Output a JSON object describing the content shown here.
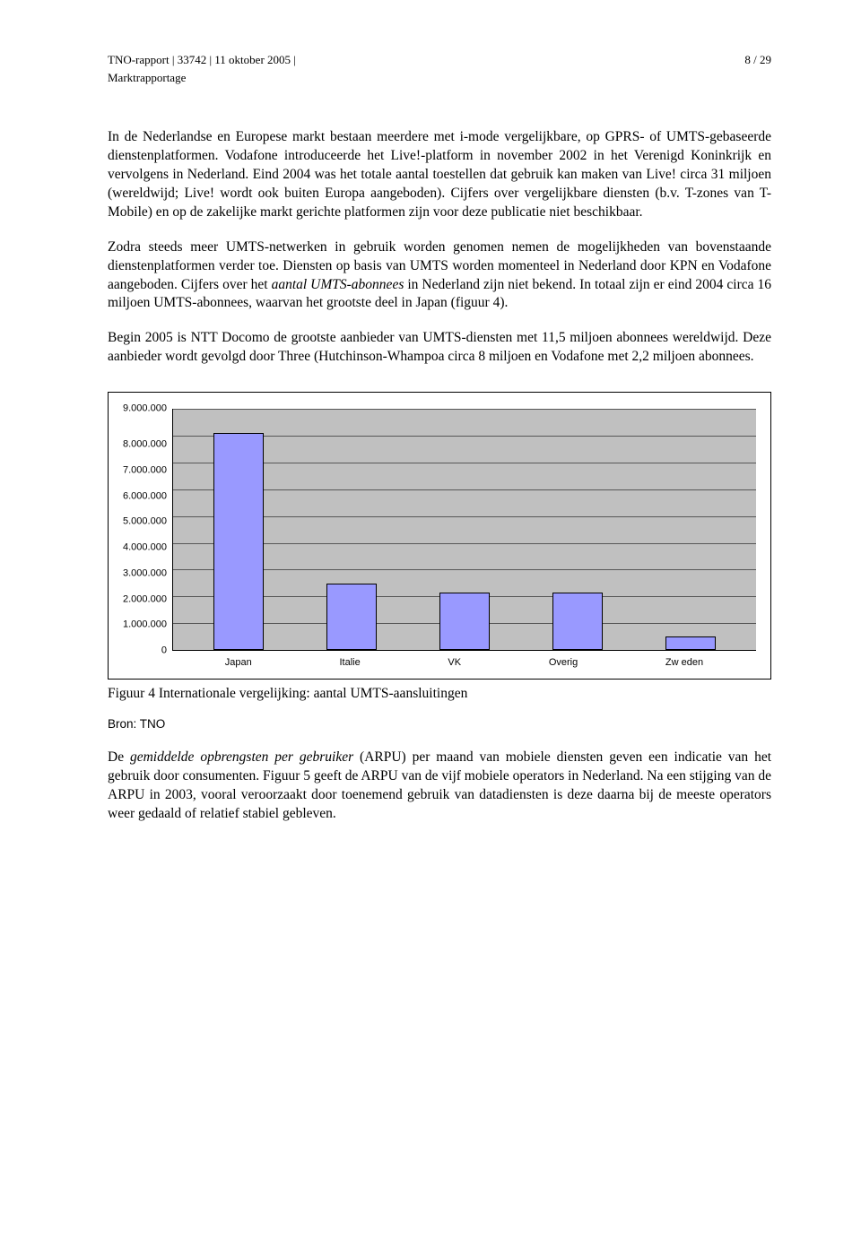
{
  "header": {
    "left": "TNO-rapport | 33742 | 11 oktober 2005 |",
    "right": "8 / 29",
    "sub": "Marktrapportage"
  },
  "paragraphs": {
    "p1_a": "In de Nederlandse en Europese markt bestaan meerdere met i-mode vergelijkbare, op GPRS- of UMTS-gebaseerde dienstenplatformen. Vodafone introduceerde het Live!-platform in november 2002 in het Verenigd Koninkrijk en vervolgens in Nederland. Eind 2004 was het totale aantal toestellen dat gebruik kan maken van Live! circa 31 miljoen  (wereldwijd; Live! wordt ook buiten Europa aangeboden). Cijfers over vergelijkbare diensten (b.v. T-zones van T-Mobile) en op de zakelijke markt gerichte platformen zijn voor deze publicatie niet beschikbaar.",
    "p2_a": "Zodra steeds meer UMTS-netwerken in gebruik worden genomen nemen de mogelijkheden van bovenstaande dienstenplatformen verder toe. Diensten op basis van UMTS worden momenteel in Nederland door KPN en Vodafone aangeboden. Cijfers over het ",
    "p2_em": "aantal UMTS-abonnees",
    "p2_b": " in Nederland zijn niet bekend. In totaal zijn er eind 2004 circa 16 miljoen UMTS-abonnees, waarvan het grootste deel in Japan (figuur 4).",
    "p3": "Begin 2005 is NTT Docomo de grootste aanbieder van UMTS-diensten met 11,5 miljoen abonnees wereldwijd. Deze aanbieder wordt gevolgd door Three (Hutchinson-Whampoa circa 8 miljoen en Vodafone met 2,2 miljoen abonnees.",
    "p4_a": "De ",
    "p4_em": "gemiddelde opbrengsten per gebruiker",
    "p4_b": " (ARPU) per maand van mobiele diensten geven een indicatie van het gebruik door consumenten. Figuur 5 geeft de ARPU van de vijf mobiele operators in Nederland. Na een stijging van de ARPU in 2003, vooral veroorzaakt door toenemend gebruik van datadiensten is deze daarna bij de meeste operators weer gedaald of relatief stabiel gebleven."
  },
  "chart": {
    "type": "bar",
    "categories": [
      "Japan",
      "Italie",
      "VK",
      "Overig",
      "Zw eden"
    ],
    "values": [
      8100000,
      2500000,
      2150000,
      2150000,
      500000
    ],
    "y_ticks": [
      "9.000.000",
      "8.000.000",
      "7.000.000",
      "6.000.000",
      "5.000.000",
      "4.000.000",
      "3.000.000",
      "2.000.000",
      "1.000.000",
      "0"
    ],
    "ymax": 9000000,
    "bar_color": "#9999ff",
    "plot_bg": "#c0c0c0",
    "border_color": "#000000",
    "font_family": "Arial",
    "label_fontsize": 11
  },
  "caption": "Figuur 4 Internationale vergelijking: aantal UMTS-aansluitingen",
  "source": "Bron: TNO"
}
